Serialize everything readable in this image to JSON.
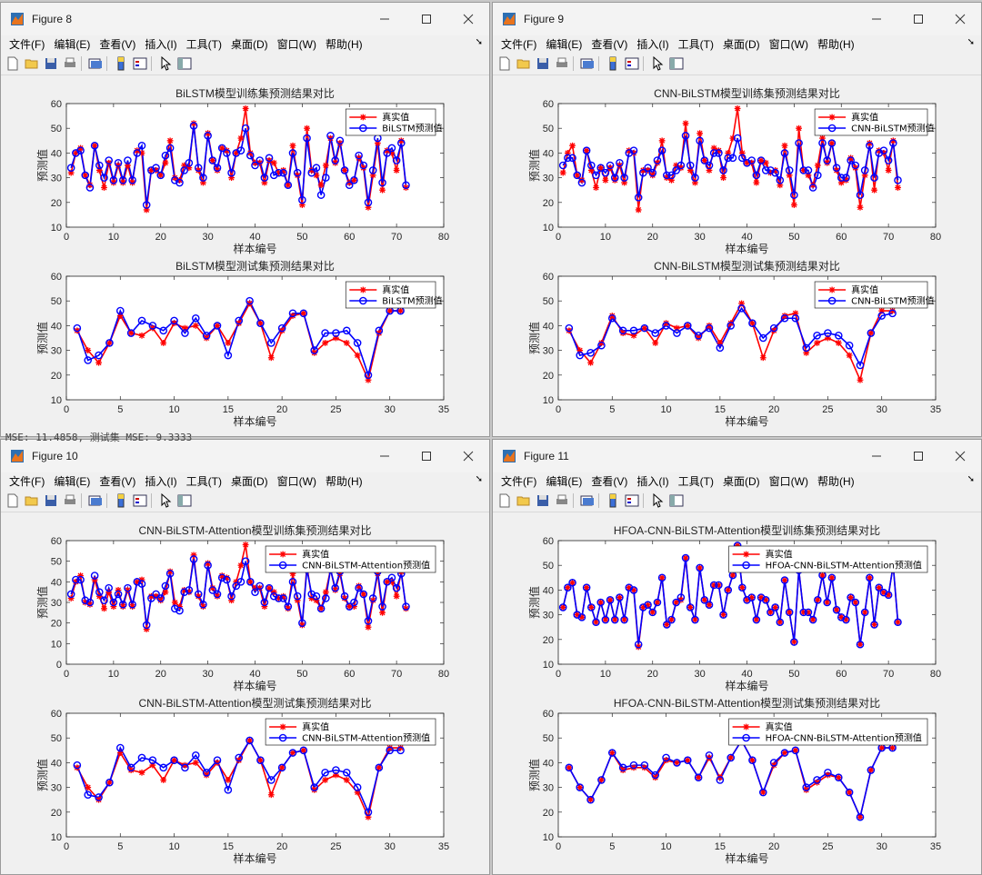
{
  "windows": [
    {
      "title": "Figure 8"
    },
    {
      "title": "Figure 9"
    },
    {
      "title": "Figure 10"
    },
    {
      "title": "Figure 11"
    }
  ],
  "menu": [
    "文件(F)",
    "编辑(E)",
    "查看(V)",
    "插入(I)",
    "工具(T)",
    "桌面(D)",
    "窗口(W)",
    "帮助(H)"
  ],
  "toolbar_icons": [
    "new-file-icon",
    "open-folder-icon",
    "save-icon",
    "print-icon",
    "print-preview-icon",
    "colorbar-icon",
    "legend-icon",
    "pointer-icon",
    "property-editor-icon"
  ],
  "console_text": "MSE: 11.4858, 测试集 MSE: 9.3333",
  "colors": {
    "true": "#ff0000",
    "pred": "#0000ff"
  },
  "chart_data": [
    {
      "figure": 0,
      "type": "line",
      "title": "BiLSTM模型训练集预测结果对比",
      "xlabel": "样本编号",
      "ylabel": "预测值",
      "xlim": [
        0,
        80
      ],
      "ylim": [
        10,
        60
      ],
      "xticks": [
        0,
        10,
        20,
        30,
        40,
        50,
        60,
        70,
        80
      ],
      "yticks": [
        10,
        20,
        30,
        40,
        50,
        60
      ],
      "series": [
        {
          "name": "真实值",
          "values": [
            32,
            40,
            42,
            31,
            27,
            43,
            33,
            26,
            36,
            28,
            35,
            28,
            35,
            28,
            41,
            40,
            17,
            33,
            33,
            31,
            36,
            45,
            30,
            29,
            35,
            34,
            52,
            33,
            28,
            48,
            37,
            33,
            42,
            41,
            30,
            40,
            46,
            58,
            40,
            36,
            36,
            28,
            37,
            36,
            32,
            33,
            27,
            43,
            31,
            19,
            50,
            33,
            31,
            27,
            35,
            46,
            36,
            44,
            33,
            28,
            29,
            38,
            34,
            18,
            31,
            44,
            25,
            41,
            40,
            33,
            45,
            26
          ]
        },
        {
          "name": "BiLSTM预测值",
          "values": [
            34,
            40,
            41,
            31,
            26,
            43,
            35,
            30,
            37,
            29,
            36,
            29,
            37,
            29,
            40,
            43,
            19,
            33,
            34,
            31,
            39,
            42,
            29,
            28,
            33,
            36,
            51,
            34,
            30,
            47,
            37,
            34,
            42,
            40,
            32,
            40,
            41,
            50,
            39,
            35,
            37,
            30,
            38,
            31,
            32,
            32,
            27,
            40,
            32,
            21,
            46,
            32,
            34,
            23,
            30,
            47,
            37,
            45,
            33,
            27,
            29,
            39,
            35,
            20,
            33,
            46,
            28,
            40,
            42,
            37,
            44,
            27
          ]
        }
      ]
    },
    {
      "figure": 0,
      "type": "line",
      "title": "BiLSTM模型测试集预测结果对比",
      "xlabel": "样本编号",
      "ylabel": "预测值",
      "xlim": [
        0,
        35
      ],
      "ylim": [
        10,
        60
      ],
      "xticks": [
        0,
        5,
        10,
        15,
        20,
        25,
        30,
        35
      ],
      "yticks": [
        10,
        20,
        30,
        40,
        50,
        60
      ],
      "series": [
        {
          "name": "真实值",
          "values": [
            38,
            30,
            25,
            33,
            44,
            37,
            36,
            39,
            33,
            41,
            39,
            40,
            35,
            40,
            33,
            41,
            49,
            41,
            27,
            38,
            44,
            45,
            29,
            33,
            35,
            33,
            28,
            18,
            37,
            46,
            46
          ]
        },
        {
          "name": "BiLSTM预测值",
          "values": [
            39,
            26,
            28,
            33,
            46,
            37,
            42,
            40,
            38,
            42,
            37,
            43,
            36,
            40,
            28,
            42,
            50,
            41,
            33,
            39,
            45,
            45,
            30,
            37,
            37,
            38,
            33,
            20,
            38,
            46,
            46
          ]
        }
      ]
    },
    {
      "figure": 1,
      "type": "line",
      "title": "CNN-BiLSTM模型训练集预测结果对比",
      "xlabel": "样本编号",
      "ylabel": "预测值",
      "xlim": [
        0,
        80
      ],
      "ylim": [
        10,
        60
      ],
      "xticks": [
        0,
        10,
        20,
        30,
        40,
        50,
        60,
        70,
        80
      ],
      "yticks": [
        10,
        20,
        30,
        40,
        50,
        60
      ],
      "series": [
        {
          "name": "真实值",
          "values": [
            32,
            40,
            43,
            31,
            29,
            41,
            33,
            26,
            34,
            29,
            34,
            29,
            35,
            28,
            41,
            40,
            17,
            33,
            33,
            31,
            36,
            45,
            30,
            29,
            35,
            34,
            52,
            33,
            28,
            48,
            37,
            33,
            42,
            41,
            30,
            40,
            46,
            58,
            40,
            36,
            36,
            28,
            37,
            36,
            32,
            33,
            27,
            43,
            31,
            19,
            50,
            33,
            31,
            27,
            35,
            46,
            36,
            44,
            33,
            28,
            29,
            38,
            34,
            18,
            31,
            44,
            25,
            41,
            40,
            33,
            45,
            26
          ]
        },
        {
          "name": "CNN-BiLSTM预测值",
          "values": [
            35,
            38,
            38,
            31,
            28,
            41,
            35,
            31,
            34,
            32,
            35,
            30,
            36,
            30,
            40,
            41,
            22,
            32,
            34,
            32,
            37,
            41,
            31,
            31,
            33,
            35,
            47,
            35,
            30,
            45,
            37,
            35,
            40,
            40,
            33,
            38,
            38,
            46,
            38,
            36,
            37,
            31,
            37,
            33,
            33,
            32,
            29,
            40,
            33,
            23,
            44,
            33,
            33,
            26,
            31,
            44,
            37,
            44,
            34,
            30,
            30,
            37,
            35,
            23,
            33,
            43,
            30,
            40,
            41,
            37,
            44,
            29
          ]
        }
      ]
    },
    {
      "figure": 1,
      "type": "line",
      "title": "CNN-BiLSTM模型测试集预测结果对比",
      "xlabel": "样本编号",
      "ylabel": "预测值",
      "xlim": [
        0,
        35
      ],
      "ylim": [
        10,
        60
      ],
      "xticks": [
        0,
        5,
        10,
        15,
        20,
        25,
        30,
        35
      ],
      "yticks": [
        10,
        20,
        30,
        40,
        50,
        60
      ],
      "series": [
        {
          "name": "真实值",
          "values": [
            38,
            30,
            25,
            33,
            44,
            37,
            36,
            39,
            33,
            41,
            39,
            40,
            35,
            40,
            33,
            41,
            49,
            41,
            27,
            38,
            44,
            45,
            29,
            33,
            35,
            33,
            28,
            18,
            37,
            46,
            46
          ]
        },
        {
          "name": "CNN-BiLSTM预测值",
          "values": [
            39,
            28,
            29,
            32,
            43,
            38,
            38,
            39,
            37,
            40,
            37,
            40,
            36,
            39,
            31,
            40,
            47,
            41,
            35,
            39,
            43,
            43,
            31,
            36,
            37,
            36,
            32,
            24,
            37,
            44,
            45
          ]
        }
      ]
    },
    {
      "figure": 2,
      "type": "line",
      "title": "CNN-BiLSTM-Attention模型训练集预测结果对比",
      "xlabel": "样本编号",
      "ylabel": "预测值",
      "xlim": [
        0,
        80
      ],
      "ylim": [
        0,
        60
      ],
      "xticks": [
        0,
        10,
        20,
        30,
        40,
        50,
        60,
        70,
        80
      ],
      "yticks": [
        0,
        10,
        20,
        30,
        40,
        50,
        60
      ],
      "series": [
        {
          "name": "真实值",
          "values": [
            32,
            40,
            43,
            30,
            29,
            41,
            33,
            27,
            35,
            28,
            36,
            28,
            36,
            28,
            40,
            41,
            17,
            33,
            33,
            31,
            35,
            45,
            30,
            28,
            36,
            35,
            53,
            33,
            28,
            49,
            37,
            33,
            43,
            42,
            31,
            40,
            48,
            58,
            40,
            37,
            37,
            28,
            37,
            35,
            32,
            33,
            27,
            44,
            31,
            19,
            48,
            32,
            31,
            27,
            35,
            46,
            36,
            44,
            32,
            28,
            28,
            38,
            34,
            18,
            31,
            44,
            25,
            40,
            40,
            33,
            45,
            27
          ]
        },
        {
          "name": "CNN-BiLSTM-Attention预测值",
          "values": [
            34,
            41,
            41,
            31,
            30,
            43,
            35,
            31,
            37,
            30,
            34,
            29,
            37,
            29,
            40,
            39,
            19,
            32,
            34,
            32,
            38,
            44,
            27,
            26,
            35,
            36,
            51,
            34,
            29,
            48,
            36,
            34,
            42,
            41,
            33,
            38,
            40,
            50,
            40,
            35,
            38,
            30,
            37,
            33,
            32,
            32,
            28,
            40,
            33,
            20,
            46,
            34,
            33,
            27,
            32,
            46,
            37,
            45,
            33,
            28,
            30,
            37,
            34,
            21,
            32,
            45,
            28,
            40,
            42,
            37,
            44,
            28
          ]
        }
      ]
    },
    {
      "figure": 2,
      "type": "line",
      "title": "CNN-BiLSTM-Attention模型测试集预测结果对比",
      "xlabel": "样本编号",
      "ylabel": "预测值",
      "xlim": [
        0,
        35
      ],
      "ylim": [
        10,
        60
      ],
      "xticks": [
        0,
        5,
        10,
        15,
        20,
        25,
        30,
        35
      ],
      "yticks": [
        10,
        20,
        30,
        40,
        50,
        60
      ],
      "series": [
        {
          "name": "真实值",
          "values": [
            38,
            30,
            25,
            32,
            44,
            37,
            36,
            39,
            33,
            41,
            39,
            40,
            35,
            40,
            33,
            41,
            49,
            41,
            27,
            38,
            44,
            45,
            29,
            33,
            35,
            33,
            28,
            18,
            38,
            46,
            46
          ]
        },
        {
          "name": "CNN-BiLSTM-Attention预测值",
          "values": [
            39,
            27,
            26,
            32,
            46,
            38,
            42,
            41,
            38,
            41,
            38,
            43,
            36,
            41,
            29,
            42,
            49,
            41,
            33,
            38,
            44,
            45,
            30,
            36,
            37,
            36,
            30,
            20,
            38,
            45,
            45
          ]
        }
      ]
    },
    {
      "figure": 3,
      "type": "line",
      "title": "HFOA-CNN-BiLSTM-Attention模型训练集预测结果对比",
      "xlabel": "样本编号",
      "ylabel": "预测值",
      "xlim": [
        0,
        80
      ],
      "ylim": [
        10,
        60
      ],
      "xticks": [
        0,
        10,
        20,
        30,
        40,
        50,
        60,
        70,
        80
      ],
      "yticks": [
        10,
        20,
        30,
        40,
        50,
        60
      ],
      "series": [
        {
          "name": "真实值",
          "values": [
            33,
            41,
            43,
            30,
            29,
            41,
            33,
            27,
            35,
            28,
            36,
            28,
            37,
            28,
            41,
            40,
            17,
            33,
            34,
            31,
            35,
            45,
            26,
            28,
            35,
            36,
            53,
            33,
            28,
            49,
            36,
            34,
            42,
            42,
            30,
            40,
            46,
            58,
            41,
            36,
            37,
            28,
            37,
            36,
            31,
            33,
            27,
            44,
            31,
            19,
            48,
            31,
            31,
            28,
            36,
            46,
            35,
            45,
            32,
            29,
            28,
            37,
            35,
            18,
            31,
            45,
            26,
            41,
            39,
            38,
            50,
            27
          ]
        },
        {
          "name": "HFOA-CNN-BiLSTM-Attention预测值",
          "values": [
            33,
            41,
            43,
            30,
            29,
            41,
            33,
            27,
            35,
            28,
            36,
            28,
            37,
            28,
            41,
            40,
            18,
            33,
            34,
            31,
            35,
            45,
            26,
            28,
            35,
            37,
            53,
            33,
            28,
            49,
            36,
            34,
            42,
            42,
            30,
            40,
            46,
            58,
            41,
            36,
            37,
            28,
            37,
            36,
            31,
            33,
            27,
            44,
            31,
            19,
            48,
            31,
            31,
            28,
            36,
            46,
            35,
            45,
            32,
            29,
            28,
            37,
            35,
            18,
            31,
            45,
            26,
            41,
            39,
            38,
            50,
            27
          ]
        }
      ]
    },
    {
      "figure": 3,
      "type": "line",
      "title": "HFOA-CNN-BiLSTM-Attention模型测试集预测结果对比",
      "xlabel": "样本编号",
      "ylabel": "预测值",
      "xlim": [
        0,
        35
      ],
      "ylim": [
        10,
        60
      ],
      "xticks": [
        0,
        5,
        10,
        15,
        20,
        25,
        30,
        35
      ],
      "yticks": [
        10,
        20,
        30,
        40,
        50,
        60
      ],
      "series": [
        {
          "name": "真实值",
          "values": [
            38,
            30,
            25,
            33,
            44,
            37,
            38,
            38,
            34,
            41,
            40,
            41,
            34,
            42,
            34,
            42,
            49,
            41,
            28,
            39,
            44,
            45,
            29,
            32,
            35,
            34,
            28,
            18,
            37,
            46,
            46
          ]
        },
        {
          "name": "HFOA-CNN-BiLSTM-Attention预测值",
          "values": [
            38,
            30,
            25,
            33,
            44,
            38,
            39,
            39,
            35,
            42,
            40,
            41,
            34,
            43,
            33,
            42,
            49,
            41,
            28,
            40,
            44,
            45,
            30,
            33,
            36,
            34,
            28,
            18,
            37,
            46,
            46
          ]
        }
      ]
    }
  ]
}
